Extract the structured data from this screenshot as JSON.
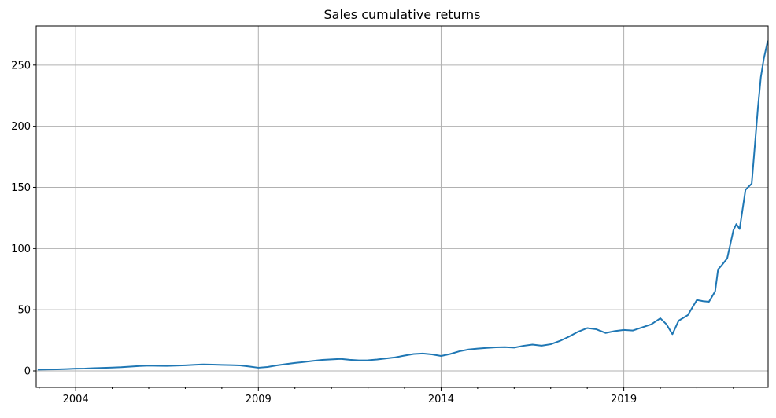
{
  "chart_data": {
    "type": "line",
    "title": "Sales cumulative returns",
    "xlabel": "",
    "ylabel": "",
    "x_ticks": [
      "2004",
      "2009",
      "2014",
      "2019"
    ],
    "x_tick_values": [
      2004.0,
      2009.0,
      2014.0,
      2019.0
    ],
    "y_ticks": [
      "0",
      "50",
      "100",
      "150",
      "200",
      "250"
    ],
    "y_tick_values": [
      0,
      50,
      100,
      150,
      200,
      250
    ],
    "xlim": [
      2002.92,
      2022.95
    ],
    "ylim": [
      -13.5,
      282
    ],
    "grid": true,
    "line_color": "#1f77b4",
    "grid_color": "#b0b0b0",
    "series": [
      {
        "x": [
          2002.96,
          2003.25,
          2003.5,
          2003.75,
          2004.0,
          2004.25,
          2004.5,
          2004.75,
          2005.0,
          2005.25,
          2005.5,
          2005.75,
          2006.0,
          2006.25,
          2006.5,
          2006.75,
          2007.0,
          2007.25,
          2007.5,
          2007.75,
          2008.0,
          2008.25,
          2008.5,
          2008.75,
          2009.0,
          2009.25,
          2009.5,
          2009.75,
          2010.0,
          2010.25,
          2010.5,
          2010.75,
          2011.0,
          2011.25,
          2011.5,
          2011.75,
          2012.0,
          2012.25,
          2012.5,
          2012.75,
          2013.0,
          2013.25,
          2013.5,
          2013.75,
          2014.0,
          2014.25,
          2014.5,
          2014.75,
          2015.0,
          2015.25,
          2015.5,
          2015.75,
          2016.0,
          2016.25,
          2016.5,
          2016.75,
          2017.0,
          2017.25,
          2017.5,
          2017.75,
          2018.0,
          2018.25,
          2018.5,
          2018.75,
          2019.0,
          2019.25,
          2019.5,
          2019.75,
          2020.0,
          2020.17,
          2020.33,
          2020.5,
          2020.75,
          2021.0,
          2021.17,
          2021.33,
          2021.5,
          2021.58,
          2021.67,
          2021.83,
          2022.0,
          2022.08,
          2022.17,
          2022.33,
          2022.5,
          2022.58,
          2022.67,
          2022.75,
          2022.83,
          2022.94
        ],
        "values": [
          1,
          1.2,
          1.3,
          1.5,
          1.8,
          1.9,
          2.2,
          2.5,
          2.7,
          3,
          3.5,
          4,
          4.3,
          4.2,
          4.1,
          4.3,
          4.6,
          5,
          5.3,
          5.1,
          4.9,
          4.7,
          4.5,
          3.6,
          2.6,
          3.2,
          4.5,
          5.5,
          6.5,
          7.3,
          8.2,
          9,
          9.4,
          9.8,
          9.1,
          8.6,
          8.7,
          9.3,
          10.2,
          11.1,
          12.5,
          13.8,
          14.2,
          13.5,
          12.2,
          13.8,
          16,
          17.5,
          18.2,
          18.8,
          19.3,
          19.4,
          19,
          20.5,
          21.5,
          20.6,
          21.8,
          24.5,
          28,
          32,
          35,
          34,
          31,
          32.5,
          33.5,
          33,
          35.5,
          38,
          43,
          38,
          30,
          41,
          45.5,
          58,
          57,
          56.5,
          65,
          83,
          86,
          92,
          115,
          120,
          116,
          148,
          153,
          182,
          215,
          240,
          255,
          270
        ]
      }
    ]
  }
}
